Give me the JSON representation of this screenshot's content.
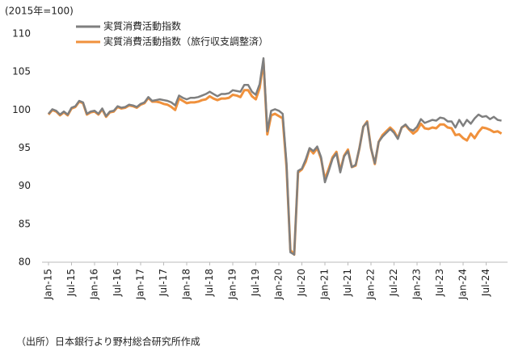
{
  "chart_data": {
    "type": "line",
    "y_label": "(2015年=100)",
    "note": "（出所）日本銀行より野村総合研究所作成",
    "categories": [
      "Jan-15",
      null,
      null,
      null,
      null,
      null,
      "Jul-15",
      null,
      null,
      null,
      null,
      null,
      "Jan-16",
      null,
      null,
      null,
      null,
      null,
      "Jul-16",
      null,
      null,
      null,
      null,
      null,
      "Jan-17",
      null,
      null,
      null,
      null,
      null,
      "Jul-17",
      null,
      null,
      null,
      null,
      null,
      "Jan-18",
      null,
      null,
      null,
      null,
      null,
      "Jul-18",
      null,
      null,
      null,
      null,
      null,
      "Jan-19",
      null,
      null,
      null,
      null,
      null,
      "Jul-19",
      null,
      null,
      null,
      null,
      null,
      "Jan-20",
      null,
      null,
      null,
      null,
      null,
      "Jul-20",
      null,
      null,
      null,
      null,
      null,
      "Jan-21",
      null,
      null,
      null,
      null,
      null,
      "Jul-21",
      null,
      null,
      null,
      null,
      null,
      "Jan-22",
      null,
      null,
      null,
      null,
      null,
      "Jul-22",
      null,
      null,
      null,
      null,
      null,
      "Jan-23",
      null,
      null,
      null,
      null,
      null,
      "Jul-23",
      null,
      null,
      null,
      null,
      null,
      "Jan-24",
      null,
      null,
      null,
      null,
      null,
      "Jul-24",
      null,
      null,
      null,
      null
    ],
    "series": [
      {
        "name": "実質消費活動指数",
        "color": "#7f7f7f",
        "values": [
          99.5,
          100.1,
          99.9,
          99.4,
          99.8,
          99.4,
          100.3,
          100.5,
          101.2,
          101.0,
          99.5,
          99.8,
          99.9,
          99.5,
          100.2,
          99.2,
          99.8,
          99.9,
          100.5,
          100.3,
          100.4,
          100.7,
          100.6,
          100.4,
          100.8,
          101.0,
          101.7,
          101.2,
          101.3,
          101.4,
          101.3,
          101.2,
          101.0,
          100.6,
          101.9,
          101.6,
          101.4,
          101.6,
          101.6,
          101.7,
          101.9,
          102.1,
          102.4,
          102.1,
          101.8,
          102.1,
          102.1,
          102.2,
          102.6,
          102.5,
          102.4,
          103.3,
          103.3,
          102.4,
          102.0,
          103.4,
          106.8,
          97.2,
          99.9,
          100.1,
          99.9,
          99.5,
          93.0,
          81.3,
          81.0,
          92.0,
          92.3,
          93.5,
          95.0,
          94.6,
          95.2,
          93.8,
          90.5,
          92.0,
          93.6,
          94.3,
          91.8,
          93.9,
          94.6,
          92.5,
          92.8,
          95.0,
          97.8,
          98.4,
          95.0,
          93.0,
          95.8,
          96.5,
          97.0,
          97.5,
          97.0,
          96.2,
          97.7,
          98.1,
          97.5,
          97.3,
          97.8,
          98.8,
          98.3,
          98.5,
          98.7,
          98.6,
          99.0,
          98.9,
          98.5,
          98.5,
          97.7,
          98.7,
          97.9,
          98.7,
          98.2,
          98.9,
          99.4,
          99.1,
          99.2,
          98.8,
          99.1,
          98.7,
          98.6
        ]
      },
      {
        "name": "実質消費活動指数（旅行収支調整済）",
        "color": "#f0913c",
        "values": [
          99.4,
          100.0,
          99.8,
          99.3,
          99.7,
          99.3,
          100.2,
          100.4,
          101.1,
          100.9,
          99.4,
          99.7,
          99.8,
          99.4,
          100.1,
          99.1,
          99.7,
          99.8,
          100.4,
          100.2,
          100.3,
          100.6,
          100.5,
          100.3,
          100.7,
          100.9,
          101.6,
          101.1,
          101.1,
          101.0,
          100.8,
          100.7,
          100.4,
          100.0,
          101.5,
          101.2,
          100.9,
          101.0,
          101.0,
          101.1,
          101.3,
          101.4,
          101.8,
          101.5,
          101.3,
          101.5,
          101.5,
          101.6,
          102.0,
          101.9,
          101.7,
          102.6,
          102.6,
          101.8,
          101.4,
          102.9,
          106.4,
          96.8,
          99.3,
          99.5,
          99.2,
          98.9,
          92.5,
          81.6,
          81.0,
          91.8,
          92.2,
          93.2,
          94.9,
          94.3,
          95.0,
          93.6,
          90.9,
          92.3,
          93.8,
          94.5,
          92.0,
          94.0,
          94.8,
          92.5,
          92.7,
          95.0,
          97.8,
          98.5,
          95.0,
          92.9,
          95.8,
          96.7,
          97.2,
          97.7,
          97.2,
          96.3,
          97.7,
          98.0,
          97.4,
          96.9,
          97.3,
          98.2,
          97.6,
          97.5,
          97.7,
          97.6,
          98.1,
          98.1,
          97.7,
          97.6,
          96.7,
          96.8,
          96.3,
          96.0,
          96.9,
          96.3,
          97.1,
          97.7,
          97.6,
          97.4,
          97.1,
          97.2,
          96.9
        ]
      }
    ],
    "ylim": [
      80,
      110
    ],
    "yticks": [
      80,
      85,
      90,
      95,
      100,
      105,
      110
    ],
    "grid": false
  }
}
